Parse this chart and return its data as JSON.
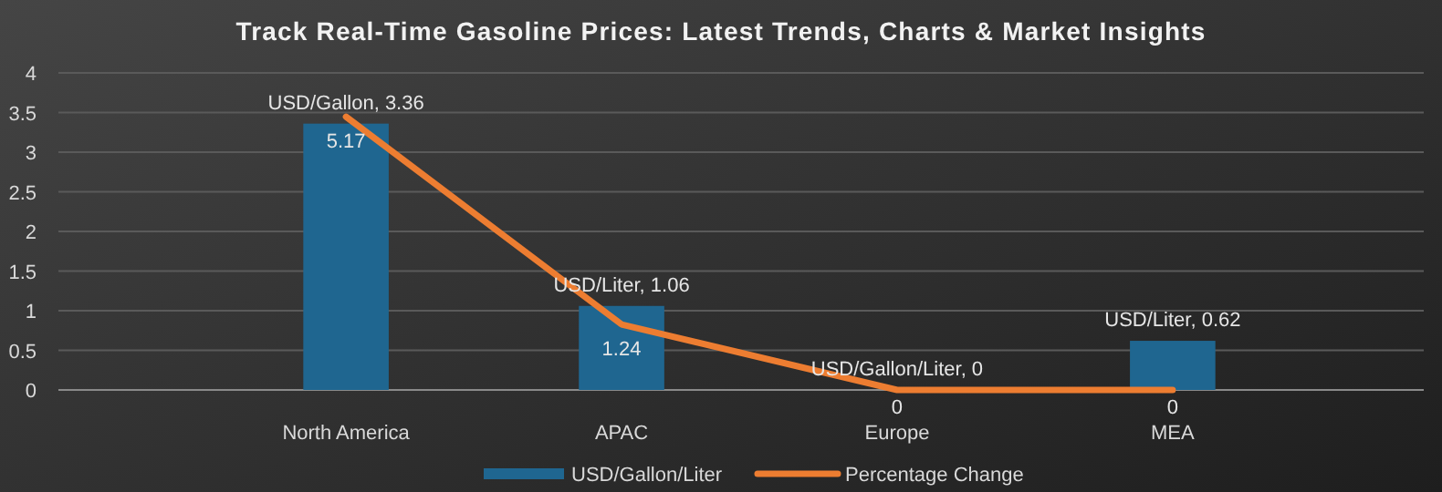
{
  "chart_data": {
    "type": "bar",
    "title": "Track Real-Time Gasoline Prices: Latest Trends, Charts & Market Insights",
    "categories": [
      "North America",
      "APAC",
      "Europe",
      "MEA"
    ],
    "series": [
      {
        "name": "USD/Gallon/Liter",
        "color": "#1f6690",
        "values": [
          3.36,
          1.06,
          0,
          0.62
        ],
        "value_labels": [
          "USD/Gallon, 3.36",
          "USD/Liter, 1.06",
          "USD/Gallon/Liter, 0",
          "USD/Liter, 0.62"
        ]
      },
      {
        "name": "Percentage Change",
        "type": "line",
        "axis": "y2",
        "color": "#ed7d31",
        "values": [
          5.17,
          1.24,
          0,
          0
        ],
        "value_labels": [
          "5.17",
          "1.24",
          "0",
          "0"
        ]
      }
    ],
    "ylim": [
      0,
      4
    ],
    "yticks": [
      0,
      0.5,
      1,
      1.5,
      2,
      2.5,
      3,
      3.5,
      4
    ],
    "y2lim": [
      0,
      6
    ],
    "grid": "y",
    "legend": "bottom"
  }
}
